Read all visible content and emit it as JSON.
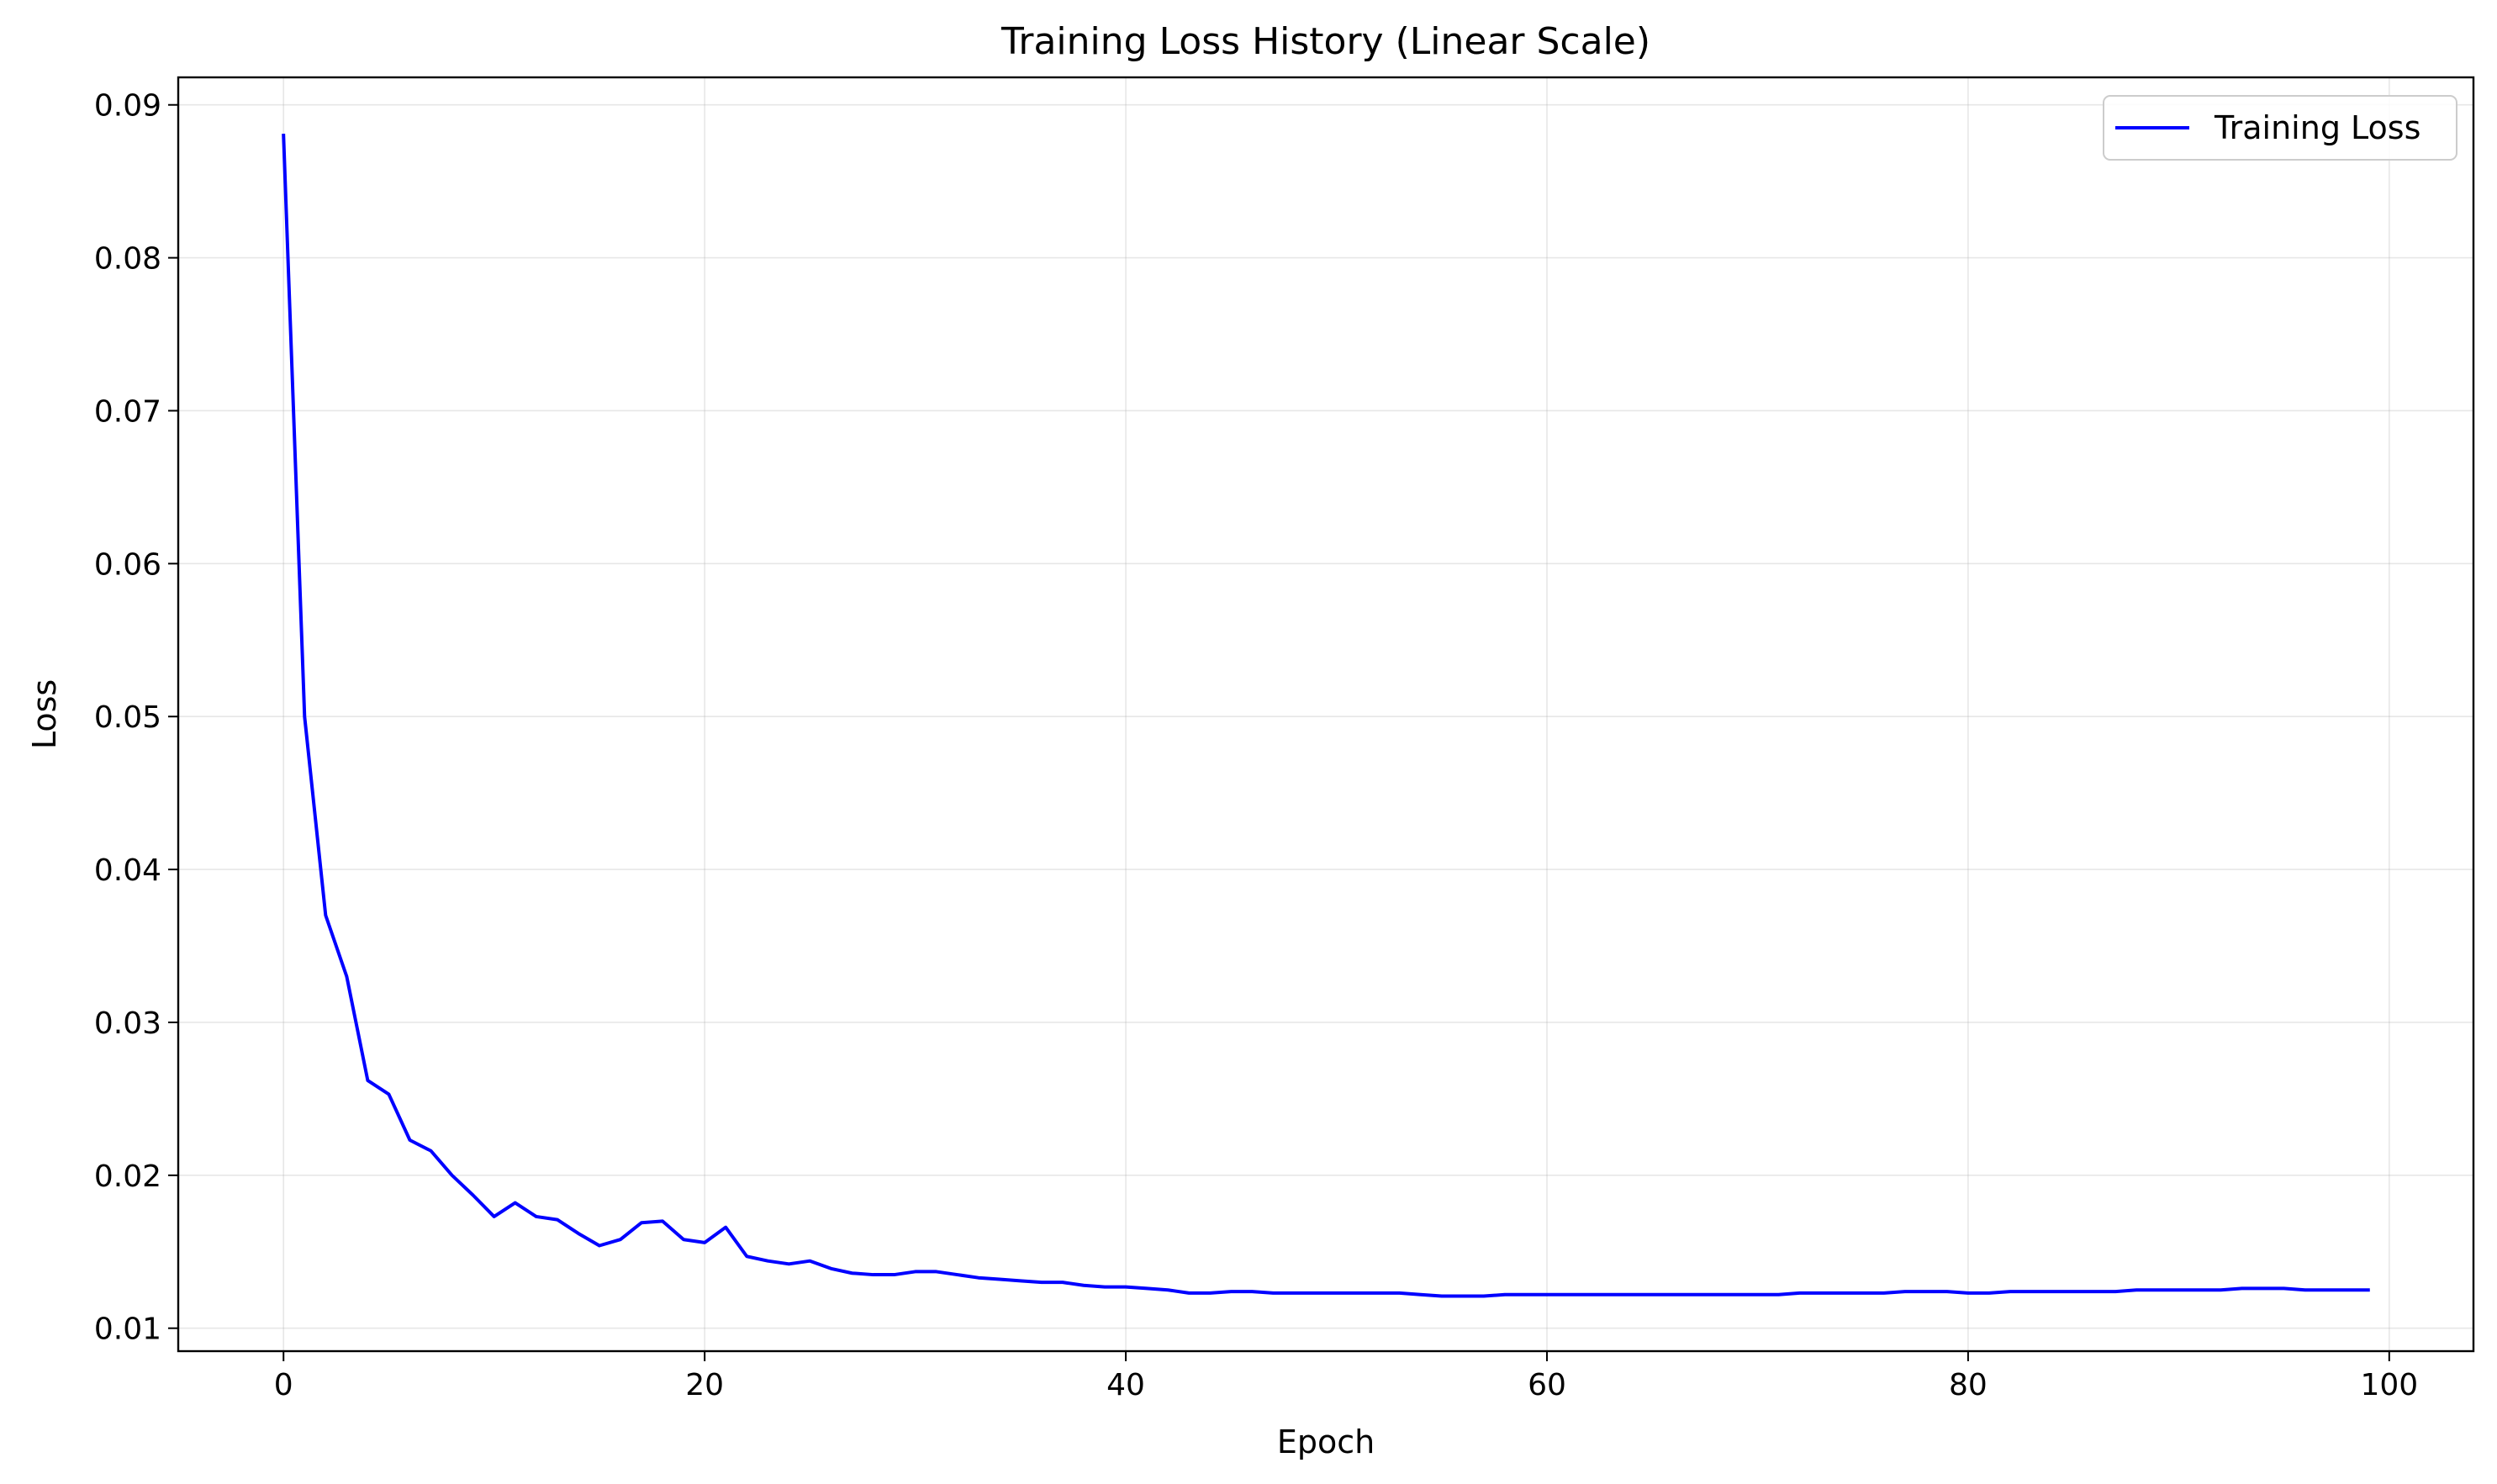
{
  "chart_data": {
    "type": "line",
    "title": "Training Loss History (Linear Scale)",
    "xlabel": "Epoch",
    "ylabel": "Loss",
    "xlim": [
      -5,
      104
    ],
    "ylim": [
      0.0085,
      0.0918
    ],
    "xticks": [
      0,
      20,
      40,
      60,
      80,
      100
    ],
    "yticks": [
      0.01,
      0.02,
      0.03,
      0.04,
      0.05,
      0.06,
      0.07,
      0.08,
      0.09
    ],
    "ytick_labels": [
      "0.01",
      "0.02",
      "0.03",
      "0.04",
      "0.05",
      "0.06",
      "0.07",
      "0.08",
      "0.09"
    ],
    "grid": true,
    "legend_position": "top-right",
    "series": [
      {
        "name": "Training Loss",
        "color": "#0000ff",
        "x": [
          0,
          1,
          2,
          3,
          4,
          5,
          6,
          7,
          8,
          9,
          10,
          11,
          12,
          13,
          14,
          15,
          16,
          17,
          18,
          19,
          20,
          21,
          22,
          23,
          24,
          25,
          26,
          27,
          28,
          29,
          30,
          31,
          32,
          33,
          34,
          35,
          36,
          37,
          38,
          39,
          40,
          41,
          42,
          43,
          44,
          45,
          46,
          47,
          48,
          49,
          50,
          51,
          52,
          53,
          54,
          55,
          56,
          57,
          58,
          59,
          60,
          61,
          62,
          63,
          64,
          65,
          66,
          67,
          68,
          69,
          70,
          71,
          72,
          73,
          74,
          75,
          76,
          77,
          78,
          79,
          80,
          81,
          82,
          83,
          84,
          85,
          86,
          87,
          88,
          89,
          90,
          91,
          92,
          93,
          94,
          95,
          96,
          97,
          98,
          99
        ],
        "values": [
          0.088,
          0.05,
          0.037,
          0.033,
          0.0262,
          0.0253,
          0.0223,
          0.0216,
          0.02,
          0.0187,
          0.0173,
          0.0182,
          0.0173,
          0.0171,
          0.0162,
          0.0154,
          0.0158,
          0.0169,
          0.017,
          0.0158,
          0.0156,
          0.0166,
          0.0147,
          0.0144,
          0.0142,
          0.0144,
          0.0139,
          0.0136,
          0.0135,
          0.0135,
          0.0137,
          0.0137,
          0.0135,
          0.0133,
          0.0132,
          0.0131,
          0.013,
          0.013,
          0.0128,
          0.0127,
          0.0127,
          0.0126,
          0.0125,
          0.0123,
          0.0123,
          0.0124,
          0.0124,
          0.0123,
          0.0123,
          0.0123,
          0.0123,
          0.0123,
          0.0123,
          0.0123,
          0.0122,
          0.0121,
          0.0121,
          0.0121,
          0.0122,
          0.0122,
          0.0122,
          0.0122,
          0.0122,
          0.0122,
          0.0122,
          0.0122,
          0.0122,
          0.0122,
          0.0122,
          0.0122,
          0.0122,
          0.0122,
          0.0123,
          0.0123,
          0.0123,
          0.0123,
          0.0123,
          0.0124,
          0.0124,
          0.0124,
          0.0123,
          0.0123,
          0.0124,
          0.0124,
          0.0124,
          0.0124,
          0.0124,
          0.0124,
          0.0125,
          0.0125,
          0.0125,
          0.0125,
          0.0125,
          0.0126,
          0.0126,
          0.0126,
          0.0125,
          0.0125,
          0.0125,
          0.0125
        ]
      }
    ]
  }
}
